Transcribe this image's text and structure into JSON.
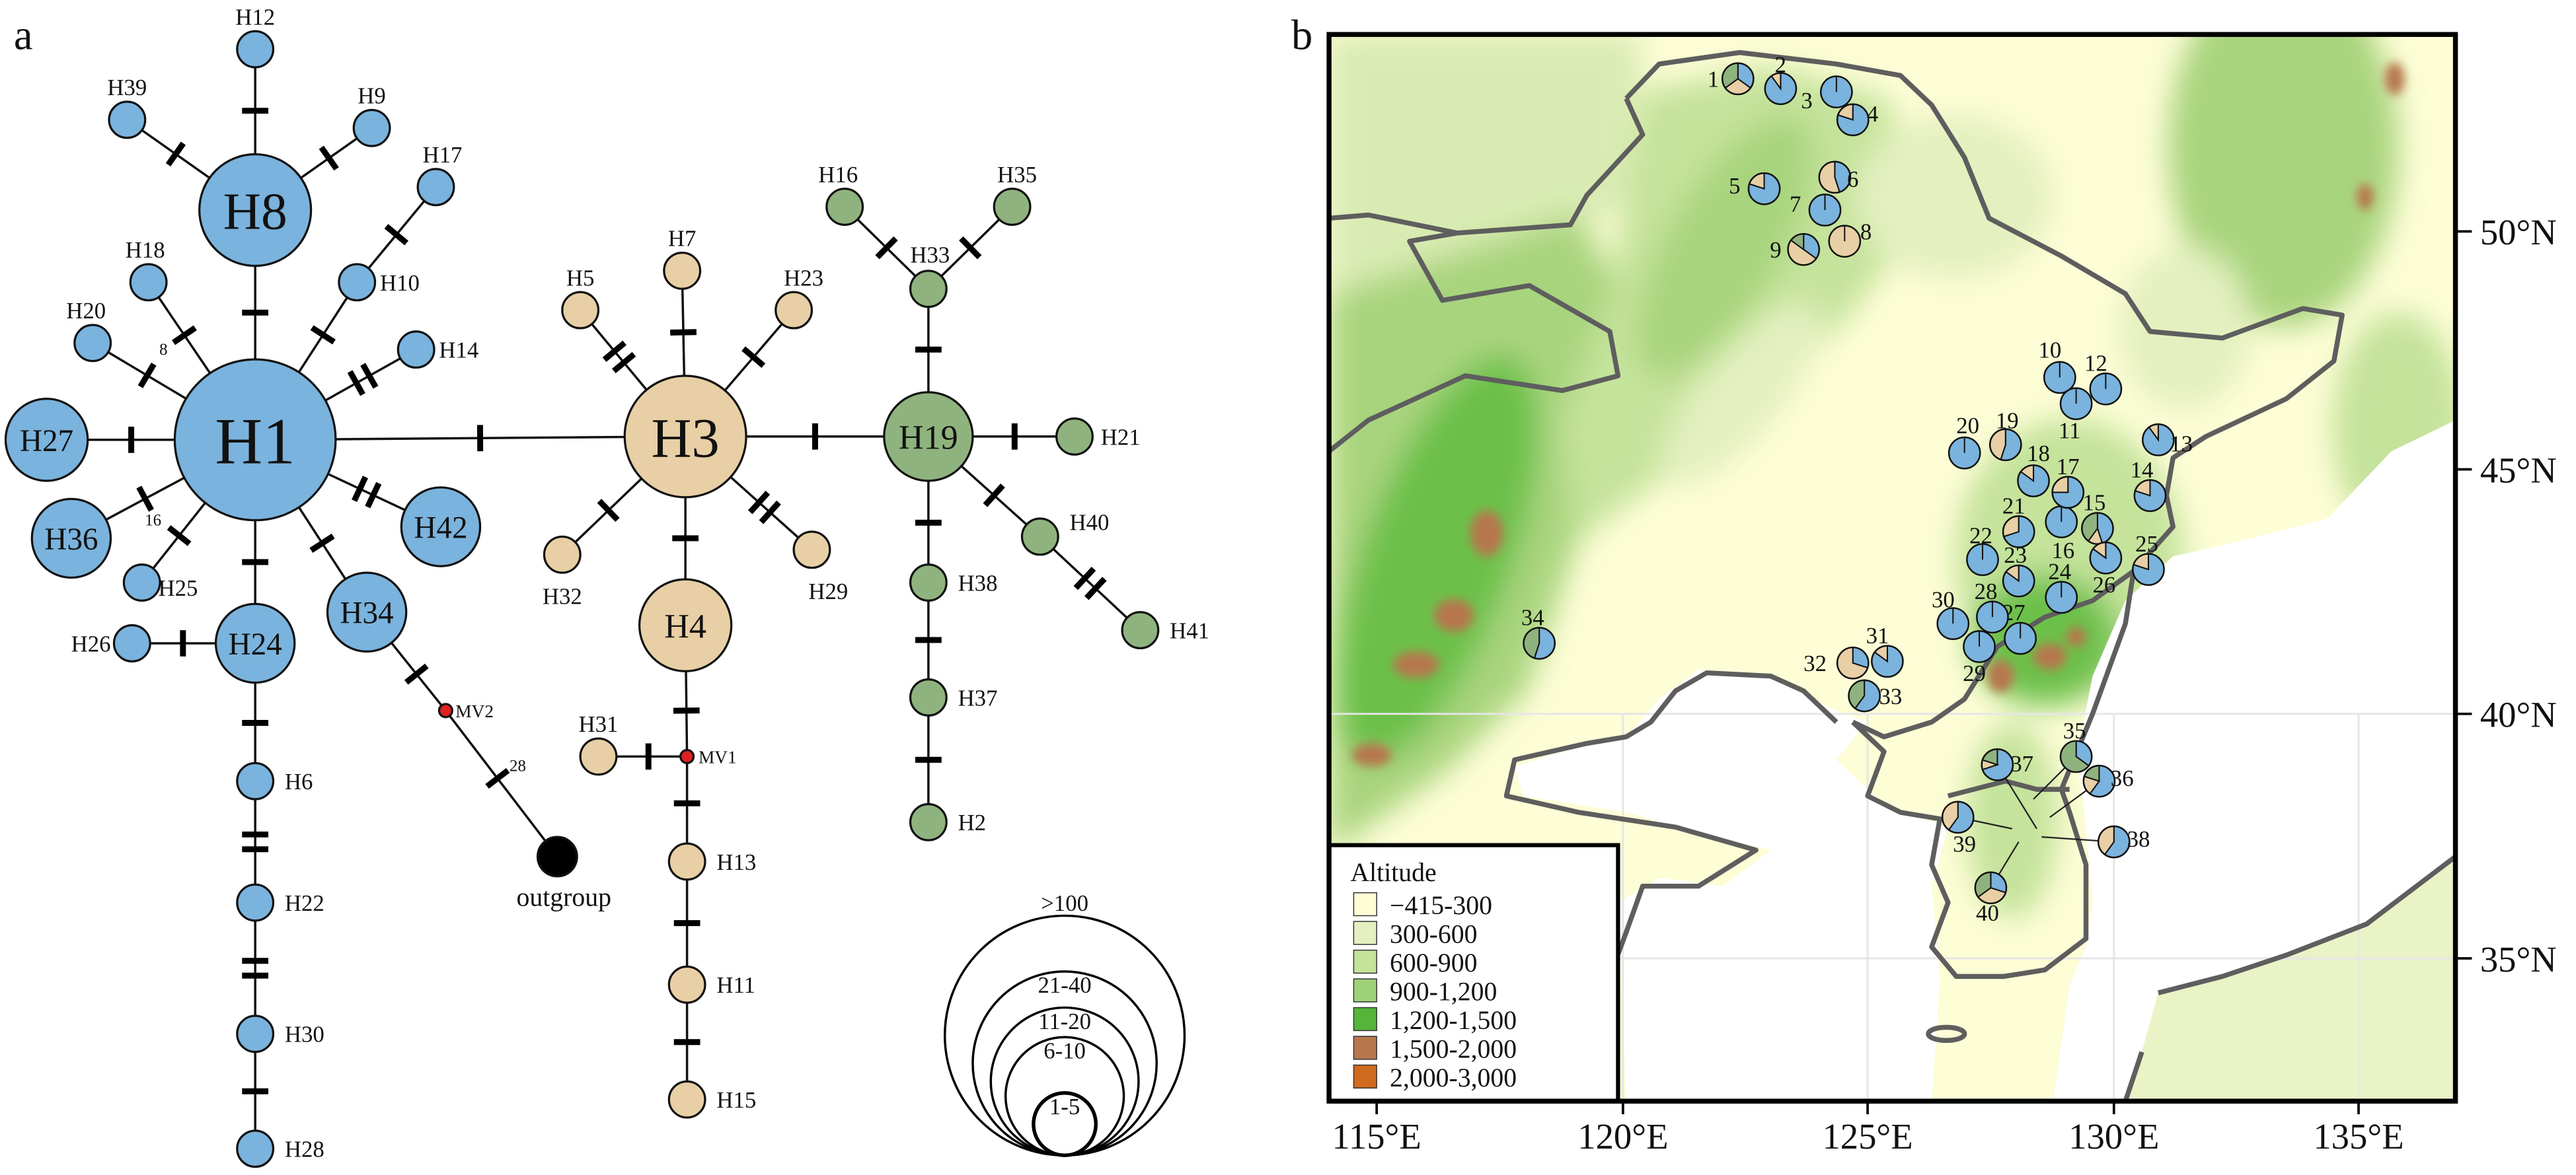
{
  "panel_a": {
    "label": "a",
    "group_colors": {
      "blue": "#7ab3dd",
      "tan": "#e8cfa5",
      "green": "#8fb37e",
      "outgroup": "#000000",
      "median_vector": "#e02020"
    },
    "nodes": [
      {
        "id": "H1",
        "group": "blue"
      },
      {
        "id": "H8",
        "group": "blue"
      },
      {
        "id": "H12",
        "group": "blue"
      },
      {
        "id": "H39",
        "group": "blue"
      },
      {
        "id": "H9",
        "group": "blue"
      },
      {
        "id": "H17",
        "group": "blue"
      },
      {
        "id": "H10",
        "group": "blue"
      },
      {
        "id": "H18",
        "group": "blue"
      },
      {
        "id": "H20",
        "group": "blue"
      },
      {
        "id": "H14",
        "group": "blue"
      },
      {
        "id": "H27",
        "group": "blue"
      },
      {
        "id": "H36",
        "group": "blue"
      },
      {
        "id": "H25",
        "group": "blue"
      },
      {
        "id": "H42",
        "group": "blue"
      },
      {
        "id": "H34",
        "group": "blue"
      },
      {
        "id": "H24",
        "group": "blue"
      },
      {
        "id": "H26",
        "group": "blue"
      },
      {
        "id": "H6",
        "group": "blue"
      },
      {
        "id": "H22",
        "group": "blue"
      },
      {
        "id": "H30",
        "group": "blue"
      },
      {
        "id": "H28",
        "group": "blue"
      },
      {
        "id": "H3",
        "group": "tan"
      },
      {
        "id": "H7",
        "group": "tan"
      },
      {
        "id": "H5",
        "group": "tan"
      },
      {
        "id": "H23",
        "group": "tan"
      },
      {
        "id": "H32",
        "group": "tan"
      },
      {
        "id": "H29",
        "group": "tan"
      },
      {
        "id": "H4",
        "group": "tan"
      },
      {
        "id": "H31",
        "group": "tan"
      },
      {
        "id": "H13",
        "group": "tan"
      },
      {
        "id": "H11",
        "group": "tan"
      },
      {
        "id": "H15",
        "group": "tan"
      },
      {
        "id": "H19",
        "group": "green"
      },
      {
        "id": "H33",
        "group": "green"
      },
      {
        "id": "H16",
        "group": "green"
      },
      {
        "id": "H35",
        "group": "green"
      },
      {
        "id": "H21",
        "group": "green"
      },
      {
        "id": "H40",
        "group": "green"
      },
      {
        "id": "H41",
        "group": "green"
      },
      {
        "id": "H38",
        "group": "green"
      },
      {
        "id": "H37",
        "group": "green"
      },
      {
        "id": "H2",
        "group": "green"
      },
      {
        "id": "MV1",
        "group": "median_vector"
      },
      {
        "id": "MV2",
        "group": "median_vector"
      },
      {
        "id": "outgroup",
        "group": "outgroup"
      }
    ],
    "edges": [
      {
        "from": "H1",
        "to": "H8",
        "mutations": 1
      },
      {
        "from": "H8",
        "to": "H12",
        "mutations": 1
      },
      {
        "from": "H8",
        "to": "H39",
        "mutations": 1
      },
      {
        "from": "H8",
        "to": "H9",
        "mutations": 1
      },
      {
        "from": "H1",
        "to": "H10",
        "mutations": 1
      },
      {
        "from": "H10",
        "to": "H17",
        "mutations": 1
      },
      {
        "from": "H1",
        "to": "H18",
        "mutations": 1,
        "label": "8"
      },
      {
        "from": "H1",
        "to": "H20",
        "mutations": 1
      },
      {
        "from": "H1",
        "to": "H14",
        "mutations": 2
      },
      {
        "from": "H1",
        "to": "H27",
        "mutations": 1
      },
      {
        "from": "H1",
        "to": "H36",
        "mutations": 1,
        "label": "16"
      },
      {
        "from": "H1",
        "to": "H25",
        "mutations": 1
      },
      {
        "from": "H1",
        "to": "H42",
        "mutations": 2
      },
      {
        "from": "H1",
        "to": "H34",
        "mutations": 1
      },
      {
        "from": "H1",
        "to": "H24",
        "mutations": 1
      },
      {
        "from": "H24",
        "to": "H26",
        "mutations": 1
      },
      {
        "from": "H24",
        "to": "H6",
        "mutations": 1
      },
      {
        "from": "H6",
        "to": "H22",
        "mutations": 2
      },
      {
        "from": "H22",
        "to": "H30",
        "mutations": 2
      },
      {
        "from": "H30",
        "to": "H28",
        "mutations": 1
      },
      {
        "from": "H34",
        "to": "MV2",
        "mutations": 1
      },
      {
        "from": "MV2",
        "to": "outgroup",
        "mutations": 1,
        "label": "28"
      },
      {
        "from": "H1",
        "to": "H3",
        "mutations": 1
      },
      {
        "from": "H3",
        "to": "H5",
        "mutations": 2
      },
      {
        "from": "H3",
        "to": "H7",
        "mutations": 1
      },
      {
        "from": "H3",
        "to": "H23",
        "mutations": 1
      },
      {
        "from": "H3",
        "to": "H32",
        "mutations": 1
      },
      {
        "from": "H3",
        "to": "H29",
        "mutations": 2
      },
      {
        "from": "H3",
        "to": "H4",
        "mutations": 1
      },
      {
        "from": "H4",
        "to": "MV1",
        "mutations": 1
      },
      {
        "from": "MV1",
        "to": "H31",
        "mutations": 1
      },
      {
        "from": "MV1",
        "to": "H13",
        "mutations": 1
      },
      {
        "from": "H13",
        "to": "H11",
        "mutations": 1
      },
      {
        "from": "H11",
        "to": "H15",
        "mutations": 1
      },
      {
        "from": "H3",
        "to": "H19",
        "mutations": 1
      },
      {
        "from": "H19",
        "to": "H33",
        "mutations": 1
      },
      {
        "from": "H33",
        "to": "H16",
        "mutations": 1
      },
      {
        "from": "H33",
        "to": "H35",
        "mutations": 1
      },
      {
        "from": "H19",
        "to": "H21",
        "mutations": 1
      },
      {
        "from": "H19",
        "to": "H40",
        "mutations": 1
      },
      {
        "from": "H40",
        "to": "H41",
        "mutations": 2
      },
      {
        "from": "H19",
        "to": "H38",
        "mutations": 1
      },
      {
        "from": "H38",
        "to": "H37",
        "mutations": 1
      },
      {
        "from": "H37",
        "to": "H2",
        "mutations": 1
      }
    ],
    "size_legend": [
      ">100",
      "21-40",
      "11-20",
      "6-10",
      "1-5"
    ]
  },
  "panel_b": {
    "label": "b",
    "x_ticks": [
      "115°E",
      "120°E",
      "125°E",
      "130°E",
      "135°E"
    ],
    "y_ticks": [
      "50°N",
      "45°N",
      "40°N",
      "35°N"
    ],
    "legend": {
      "title": "Altitude",
      "entries": [
        {
          "label": "−415-300",
          "color": "#fdfdd6"
        },
        {
          "label": "300-600",
          "color": "#e4f0bf"
        },
        {
          "label": "600-900",
          "color": "#c5e39b"
        },
        {
          "label": "900-1,200",
          "color": "#9fd178"
        },
        {
          "label": "1,200-1,500",
          "color": "#55b53b"
        },
        {
          "label": "1,500-2,000",
          "color": "#b7774e"
        },
        {
          "label": "2,000-3,000",
          "color": "#cf6a1e"
        }
      ]
    },
    "pie_colors": [
      "#7ab3dd",
      "#e8cfa5",
      "#8fb37e"
    ],
    "sites": [
      {
        "n": "1",
        "f": [
          0.35,
          0.3,
          0.35
        ]
      },
      {
        "n": "2",
        "f": [
          0.9,
          0.1,
          0
        ]
      },
      {
        "n": "3",
        "f": [
          1,
          0,
          0
        ]
      },
      {
        "n": "4",
        "f": [
          0.8,
          0.2,
          0
        ]
      },
      {
        "n": "5",
        "f": [
          0.8,
          0.2,
          0
        ]
      },
      {
        "n": "6",
        "f": [
          0.45,
          0.55,
          0
        ]
      },
      {
        "n": "7",
        "f": [
          1,
          0,
          0
        ]
      },
      {
        "n": "8",
        "f": [
          0,
          1,
          0
        ]
      },
      {
        "n": "9",
        "f": [
          0.35,
          0.5,
          0.15
        ]
      },
      {
        "n": "10",
        "f": [
          1,
          0,
          0
        ]
      },
      {
        "n": "11",
        "f": [
          1,
          0,
          0
        ]
      },
      {
        "n": "12",
        "f": [
          1,
          0,
          0
        ]
      },
      {
        "n": "13",
        "f": [
          0.9,
          0.1,
          0
        ]
      },
      {
        "n": "14",
        "f": [
          0.8,
          0.2,
          0
        ]
      },
      {
        "n": "15",
        "f": [
          0.45,
          0.15,
          0.4
        ]
      },
      {
        "n": "16",
        "f": [
          1,
          0,
          0
        ]
      },
      {
        "n": "17",
        "f": [
          0.75,
          0.25,
          0
        ]
      },
      {
        "n": "18",
        "f": [
          0.85,
          0.15,
          0
        ]
      },
      {
        "n": "19",
        "f": [
          0.55,
          0.45,
          0
        ]
      },
      {
        "n": "20",
        "f": [
          1,
          0,
          0
        ]
      },
      {
        "n": "21",
        "f": [
          0.7,
          0.3,
          0
        ]
      },
      {
        "n": "22",
        "f": [
          1,
          0,
          0
        ]
      },
      {
        "n": "23",
        "f": [
          0.85,
          0.15,
          0
        ]
      },
      {
        "n": "24",
        "f": [
          1,
          0,
          0
        ]
      },
      {
        "n": "25",
        "f": [
          0.8,
          0.2,
          0
        ]
      },
      {
        "n": "26",
        "f": [
          0.85,
          0.15,
          0
        ]
      },
      {
        "n": "27",
        "f": [
          1,
          0,
          0
        ]
      },
      {
        "n": "28",
        "f": [
          1,
          0,
          0
        ]
      },
      {
        "n": "29",
        "f": [
          1,
          0,
          0
        ]
      },
      {
        "n": "30",
        "f": [
          1,
          0,
          0
        ]
      },
      {
        "n": "31",
        "f": [
          0.85,
          0.15,
          0
        ]
      },
      {
        "n": "32",
        "f": [
          0.3,
          0.7,
          0
        ]
      },
      {
        "n": "33",
        "f": [
          0.6,
          0,
          0.4
        ]
      },
      {
        "n": "34",
        "f": [
          0.55,
          0,
          0.45
        ]
      },
      {
        "n": "35",
        "f": [
          0.35,
          0,
          0.65
        ]
      },
      {
        "n": "36",
        "f": [
          0.6,
          0.2,
          0.2
        ]
      },
      {
        "n": "37",
        "f": [
          0.7,
          0.1,
          0.2
        ]
      },
      {
        "n": "38",
        "f": [
          0.6,
          0.4,
          0
        ]
      },
      {
        "n": "39",
        "f": [
          0.6,
          0.4,
          0
        ]
      },
      {
        "n": "40",
        "f": [
          0.3,
          0.35,
          0.35
        ]
      }
    ]
  }
}
